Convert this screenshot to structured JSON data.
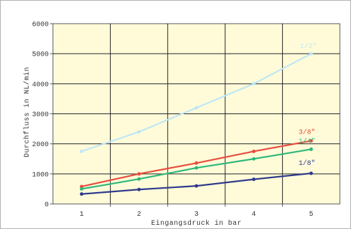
{
  "chart_data": {
    "type": "line",
    "title": "",
    "xlabel": "Eingangsdruck in bar",
    "ylabel": "Durchfluss in NL/min",
    "x": [
      1,
      2,
      3,
      4,
      5
    ],
    "xlim": [
      0.5,
      5.5
    ],
    "ylim": [
      0,
      6000
    ],
    "yticks": [
      0,
      1000,
      2000,
      3000,
      4000,
      5000,
      6000
    ],
    "yticklabels": [
      "0",
      "1000",
      "2000",
      "3000",
      "4000",
      "5000",
      "6000"
    ],
    "xticklabels": [
      "1",
      "2",
      "3",
      "4",
      "5"
    ],
    "grid": true,
    "legend": "none",
    "plot_background": "#fffbd9",
    "series": [
      {
        "name": "1/2\"",
        "color": "#bfe6f5",
        "values": [
          1750,
          2400,
          3200,
          4000,
          5000
        ]
      },
      {
        "name": "3/8\"",
        "color": "#e84c3d",
        "values": [
          580,
          1000,
          1360,
          1750,
          2100
        ]
      },
      {
        "name": "1/4\"",
        "color": "#2eb87a",
        "values": [
          500,
          830,
          1200,
          1500,
          1820
        ]
      },
      {
        "name": "1/8\"",
        "color": "#2e3a8c",
        "values": [
          330,
          480,
          600,
          820,
          1020
        ]
      }
    ]
  }
}
